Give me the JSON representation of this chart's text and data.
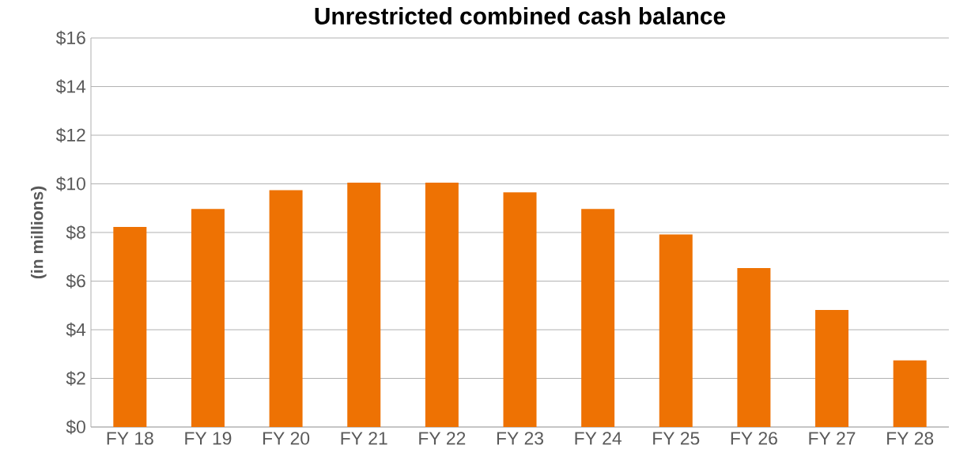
{
  "chart_data": {
    "type": "bar",
    "title": "Unrestricted combined cash balance",
    "ylabel": "(in millions)",
    "categories": [
      "FY 18",
      "FY 19",
      "FY 20",
      "FY 21",
      "FY 22",
      "FY 23",
      "FY 24",
      "FY 25",
      "FY 26",
      "FY 27",
      "FY 28"
    ],
    "values": [
      8.23,
      8.97,
      9.74,
      10.05,
      10.05,
      9.65,
      8.97,
      7.92,
      6.54,
      4.81,
      2.74
    ],
    "color": "#ee7203",
    "ylim": [
      0,
      16
    ],
    "yticks": [
      {
        "value": 0,
        "label": "$0"
      },
      {
        "value": 2,
        "label": "$2"
      },
      {
        "value": 4,
        "label": "$4"
      },
      {
        "value": 6,
        "label": "$6"
      },
      {
        "value": 8,
        "label": "$8"
      },
      {
        "value": 10,
        "label": "$10"
      },
      {
        "value": 12,
        "label": "$12"
      },
      {
        "value": 14,
        "label": "$14"
      },
      {
        "value": 16,
        "label": "$16"
      }
    ],
    "grid": "y"
  }
}
